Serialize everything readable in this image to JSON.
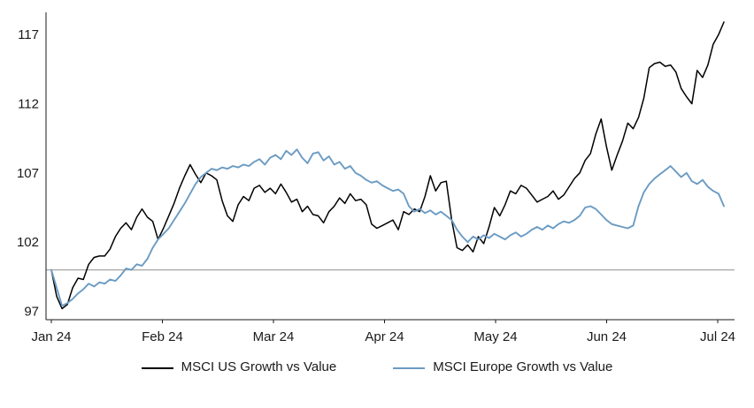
{
  "chart_data": {
    "type": "line",
    "title": "",
    "xlabel": "",
    "ylabel": "",
    "grid": false,
    "legend_position": "bottom",
    "x_tick_labels": [
      "Jan 24",
      "Feb 24",
      "Mar 24",
      "Apr 24",
      "May 24",
      "Jun 24",
      "Jul 24"
    ],
    "y_tick_values": [
      97,
      102,
      107,
      112,
      117
    ],
    "y_range": [
      96.4,
      118.6
    ],
    "reference_line": {
      "value": 100,
      "color": "#a6a6a6"
    },
    "axis_color": "#1a1a1a",
    "series": [
      {
        "name": "MSCI US Growth vs Value",
        "color": "#000000",
        "values": [
          100.0,
          98.1,
          97.2,
          97.5,
          98.7,
          99.4,
          99.3,
          100.4,
          100.9,
          101.0,
          101.0,
          101.5,
          102.4,
          103.0,
          103.4,
          102.9,
          103.8,
          104.4,
          103.8,
          103.5,
          102.2,
          103.0,
          103.9,
          104.8,
          105.9,
          106.8,
          107.6,
          106.9,
          106.3,
          107.0,
          106.8,
          106.5,
          105.0,
          103.9,
          103.5,
          104.7,
          105.3,
          105.0,
          105.9,
          106.1,
          105.6,
          105.9,
          105.5,
          106.2,
          105.6,
          104.9,
          105.1,
          104.2,
          104.6,
          104.0,
          103.9,
          103.4,
          104.2,
          104.6,
          105.2,
          104.8,
          105.5,
          105.0,
          105.1,
          104.7,
          103.3,
          103.0,
          103.2,
          103.4,
          103.6,
          102.9,
          104.2,
          104.0,
          104.4,
          104.2,
          105.3,
          106.8,
          105.7,
          106.3,
          106.4,
          103.6,
          101.6,
          101.4,
          101.8,
          101.3,
          102.4,
          101.9,
          103.1,
          104.5,
          103.9,
          104.7,
          105.7,
          105.5,
          106.1,
          105.9,
          105.4,
          104.9,
          105.1,
          105.3,
          105.7,
          105.1,
          105.4,
          106.0,
          106.6,
          107.0,
          107.9,
          108.4,
          109.8,
          110.9,
          108.9,
          107.2,
          108.3,
          109.3,
          110.6,
          110.2,
          111.0,
          112.4,
          114.6,
          114.9,
          115.0,
          114.7,
          114.8,
          114.3,
          113.1,
          112.5,
          112.0,
          114.4,
          113.9,
          114.8,
          116.3,
          117.0,
          117.9
        ]
      },
      {
        "name": "MSCI Europe Growth vs Value",
        "color": "#6b9bc3",
        "values": [
          100.0,
          98.7,
          97.4,
          97.6,
          97.9,
          98.3,
          98.6,
          99.0,
          98.8,
          99.1,
          99.0,
          99.3,
          99.2,
          99.6,
          100.1,
          100.0,
          100.4,
          100.3,
          100.8,
          101.6,
          102.2,
          102.6,
          103.0,
          103.6,
          104.2,
          104.8,
          105.5,
          106.2,
          106.7,
          107.0,
          107.3,
          107.2,
          107.4,
          107.3,
          107.5,
          107.4,
          107.6,
          107.5,
          107.8,
          108.0,
          107.6,
          108.1,
          108.3,
          108.0,
          108.6,
          108.3,
          108.7,
          108.1,
          107.7,
          108.4,
          108.5,
          107.9,
          108.2,
          107.6,
          107.8,
          107.3,
          107.5,
          107.0,
          106.8,
          106.5,
          106.3,
          106.4,
          106.1,
          105.9,
          105.7,
          105.8,
          105.5,
          104.6,
          104.2,
          104.4,
          104.1,
          104.3,
          104.0,
          104.2,
          103.9,
          103.6,
          102.9,
          102.4,
          102.0,
          102.4,
          102.2,
          102.5,
          102.3,
          102.6,
          102.4,
          102.2,
          102.5,
          102.7,
          102.4,
          102.6,
          102.9,
          103.1,
          102.9,
          103.2,
          103.0,
          103.3,
          103.5,
          103.4,
          103.6,
          103.9,
          104.5,
          104.6,
          104.4,
          104.0,
          103.6,
          103.3,
          103.2,
          103.1,
          103.0,
          103.2,
          104.6,
          105.6,
          106.2,
          106.6,
          106.9,
          107.2,
          107.5,
          107.1,
          106.7,
          107.0,
          106.4,
          106.2,
          106.5,
          106.0,
          105.7,
          105.5,
          104.6
        ]
      }
    ]
  }
}
